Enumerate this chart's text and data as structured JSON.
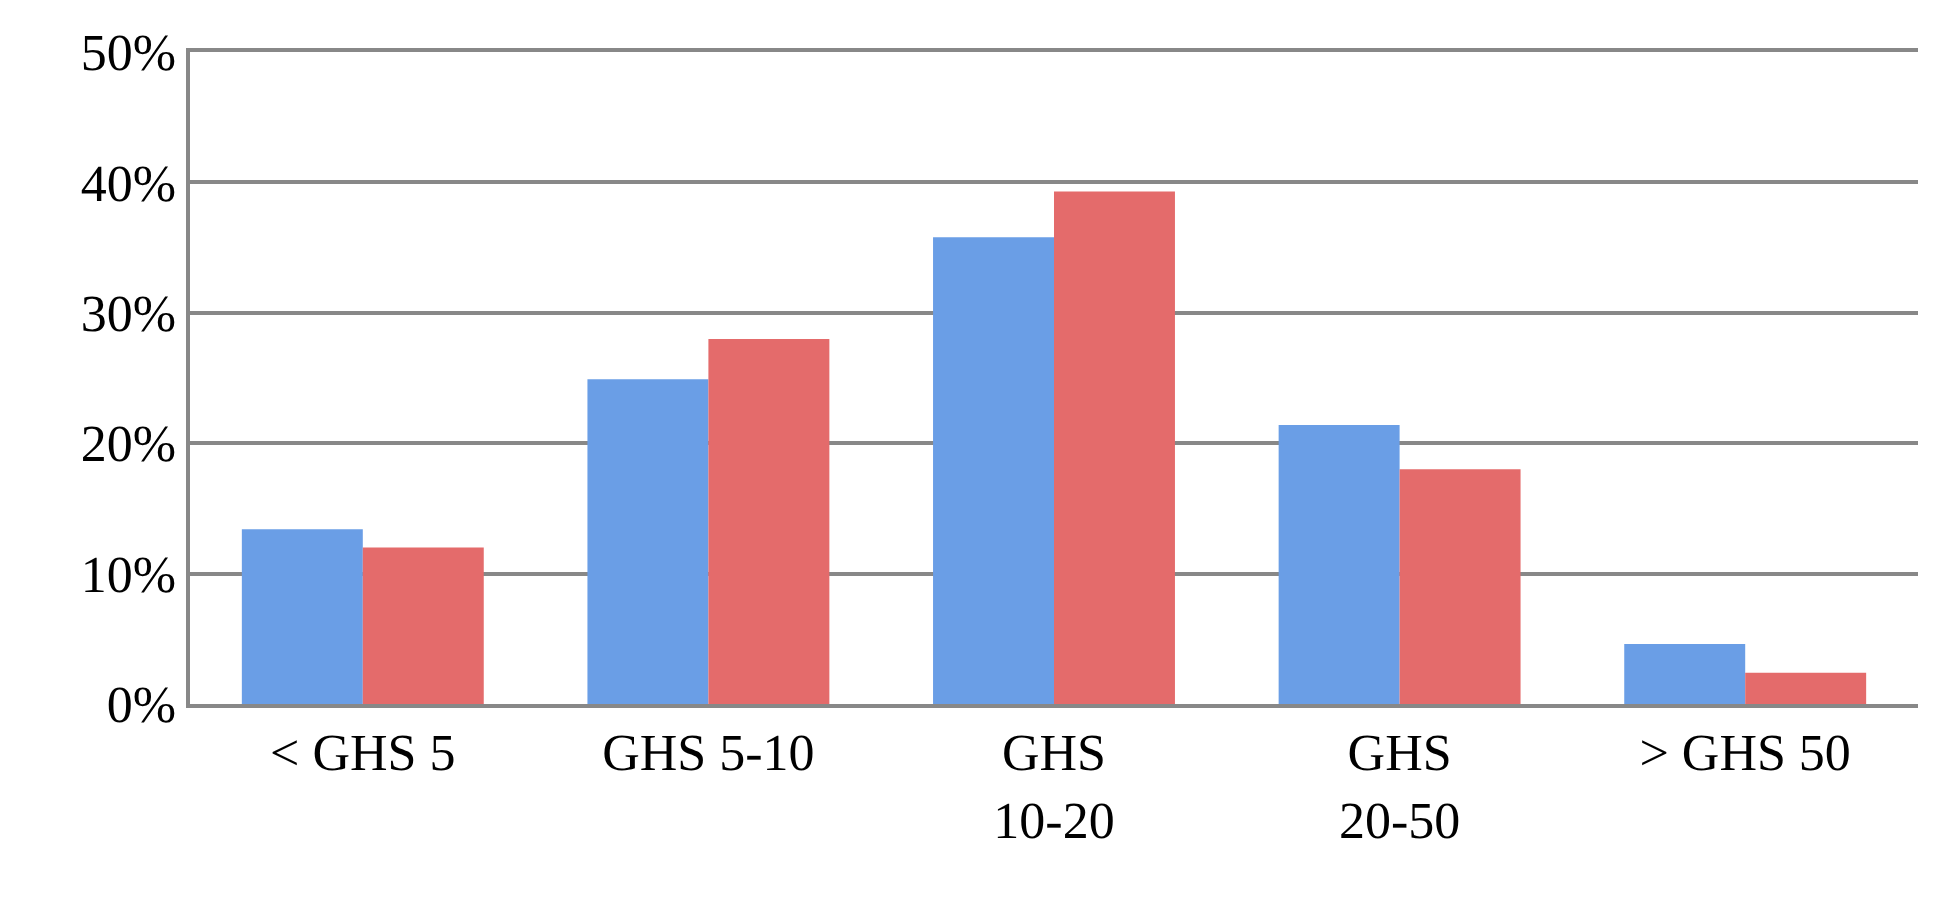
{
  "chart_data": {
    "type": "bar",
    "categories": [
      "< GHS 5",
      "GHS 5-10",
      "GHS\n10-20",
      "GHS\n20-50",
      "> GHS 50"
    ],
    "series": [
      {
        "color": "#6a9ee6",
        "values": [
          13.4,
          24.9,
          35.8,
          21.4,
          4.6
        ]
      },
      {
        "color": "#e46b6b",
        "values": [
          12.0,
          28.0,
          39.3,
          18.0,
          2.4
        ]
      }
    ],
    "ylim": [
      0,
      50
    ],
    "yticks": [
      {
        "value": 0,
        "label": "0%"
      },
      {
        "value": 10,
        "label": "10%"
      },
      {
        "value": 20,
        "label": "20%"
      },
      {
        "value": 30,
        "label": "30%"
      },
      {
        "value": 40,
        "label": "40%"
      },
      {
        "value": 50,
        "label": "50%"
      }
    ],
    "grid": "y"
  }
}
